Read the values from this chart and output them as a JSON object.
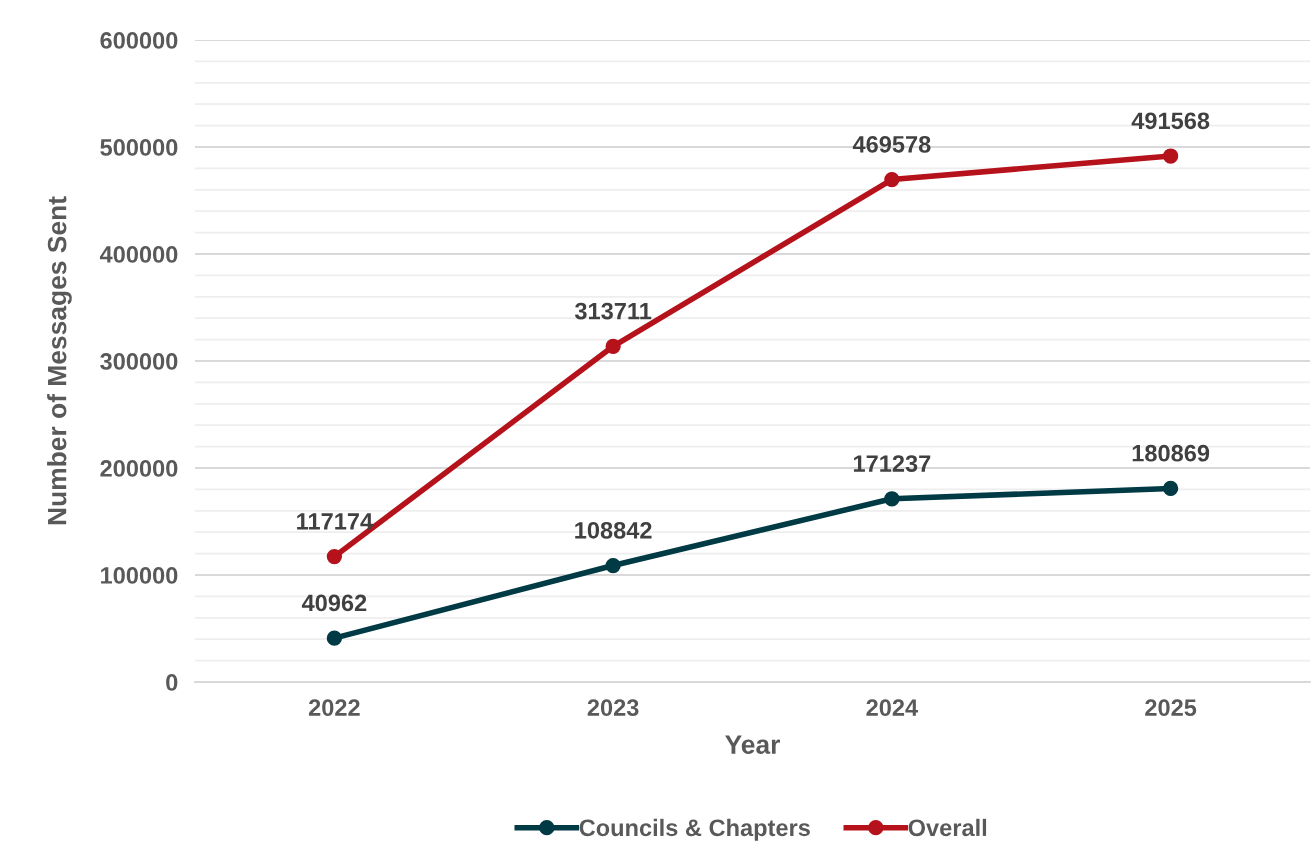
{
  "chart_data": {
    "type": "line",
    "xlabel": "Year",
    "ylabel": "Number of Messages Sent",
    "categories": [
      "2022",
      "2023",
      "2024",
      "2025"
    ],
    "series": [
      {
        "name": "Councils & Chapters",
        "color": "#003a44",
        "values": [
          40962,
          108842,
          171237,
          180869
        ]
      },
      {
        "name": "Overall",
        "color": "#b5121b",
        "values": [
          117174,
          313711,
          469578,
          491568
        ]
      }
    ],
    "ylim": [
      0,
      600000
    ],
    "yticks": [
      0,
      {
        "value": 20000,
        "label": null
      },
      {
        "value": 40000,
        "label": null
      },
      {
        "value": 60000,
        "label": null
      },
      {
        "value": 80000,
        "label": null
      },
      100000,
      {
        "value": 120000,
        "label": null
      },
      {
        "value": 140000,
        "label": null
      },
      {
        "value": 160000,
        "label": null
      },
      {
        "value": 180000,
        "label": null
      },
      200000,
      {
        "value": 220000,
        "label": null
      },
      {
        "value": 240000,
        "label": null
      },
      {
        "value": 260000,
        "label": null
      },
      {
        "value": 280000,
        "label": null
      },
      300000,
      {
        "value": 320000,
        "label": null
      },
      {
        "value": 340000,
        "label": null
      },
      {
        "value": 360000,
        "label": null
      },
      {
        "value": 380000,
        "label": null
      },
      400000,
      {
        "value": 420000,
        "label": null
      },
      {
        "value": 440000,
        "label": null
      },
      {
        "value": 460000,
        "label": null
      },
      {
        "value": 480000,
        "label": null
      },
      500000,
      {
        "value": 520000,
        "label": null
      },
      {
        "value": 540000,
        "label": null
      },
      {
        "value": 560000,
        "label": null
      },
      {
        "value": 580000,
        "label": null
      },
      600000
    ],
    "grid": "y",
    "legend": "bottom",
    "marker": "circle",
    "line_style": "solid",
    "data_labels": true
  }
}
